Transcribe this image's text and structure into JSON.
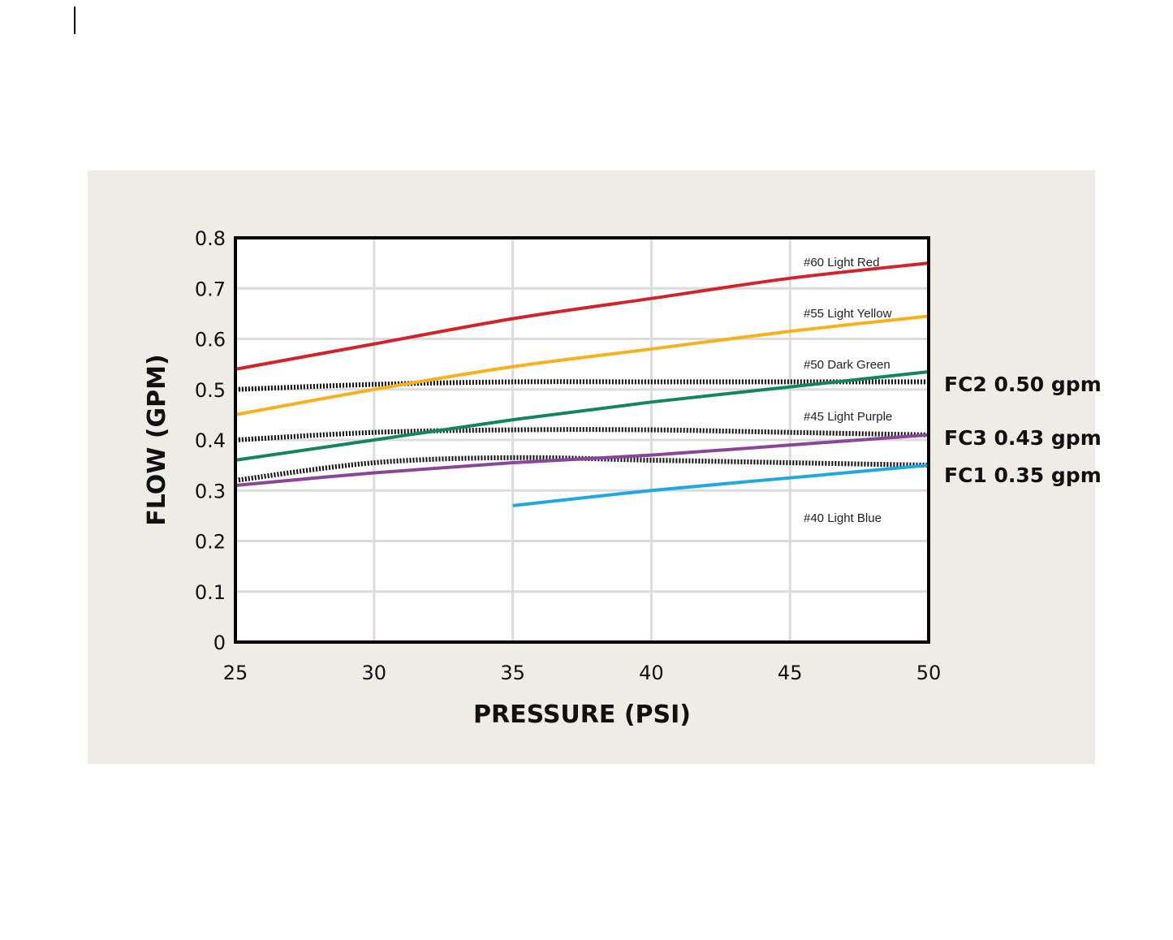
{
  "chart_data": {
    "type": "line",
    "xlabel": "PRESSURE (PSI)",
    "ylabel": "FLOW (GPM)",
    "xlim": [
      25,
      50
    ],
    "ylim": [
      0,
      0.8
    ],
    "x_ticks": [
      "25",
      "30",
      "35",
      "40",
      "45",
      "50"
    ],
    "y_ticks": [
      "0",
      "0.1",
      "0.2",
      "0.3",
      "0.4",
      "0.5",
      "0.6",
      "0.7",
      "0.8"
    ],
    "grid": true,
    "series": [
      {
        "name": "#60 Light Red",
        "color": "#d2232a",
        "x": [
          25,
          30,
          35,
          40,
          45,
          50
        ],
        "y": [
          0.54,
          0.59,
          0.64,
          0.68,
          0.72,
          0.75
        ]
      },
      {
        "name": "#55 Light Yellow",
        "color": "#f6b21d",
        "x": [
          25,
          30,
          35,
          40,
          45,
          50
        ],
        "y": [
          0.45,
          0.5,
          0.545,
          0.58,
          0.615,
          0.645
        ]
      },
      {
        "name": "#50 Dark Green",
        "color": "#13875a",
        "x": [
          25,
          30,
          35,
          40,
          45,
          50
        ],
        "y": [
          0.36,
          0.4,
          0.44,
          0.475,
          0.505,
          0.535
        ]
      },
      {
        "name": "#45 Light Purple",
        "color": "#8b469a",
        "x": [
          25,
          30,
          35,
          40,
          45,
          50
        ],
        "y": [
          0.31,
          0.335,
          0.355,
          0.37,
          0.39,
          0.41
        ]
      },
      {
        "name": "#40 Light Blue",
        "color": "#1fa9e0",
        "x": [
          35,
          40,
          45,
          50
        ],
        "y": [
          0.27,
          0.3,
          0.325,
          0.35
        ]
      }
    ],
    "reference_lines": [
      {
        "label": "FC2 0.50 gpm",
        "x": [
          25,
          30,
          35,
          40,
          45,
          50
        ],
        "y": [
          0.5,
          0.51,
          0.515,
          0.515,
          0.515,
          0.515
        ]
      },
      {
        "label": "FC3 0.43 gpm",
        "x": [
          25,
          30,
          35,
          40,
          45,
          50
        ],
        "y": [
          0.4,
          0.415,
          0.42,
          0.42,
          0.415,
          0.41
        ]
      },
      {
        "label": "FC1 0.35 gpm",
        "x": [
          25,
          30,
          35,
          40,
          45,
          50
        ],
        "y": [
          0.32,
          0.355,
          0.365,
          0.36,
          0.355,
          0.35
        ]
      }
    ]
  }
}
